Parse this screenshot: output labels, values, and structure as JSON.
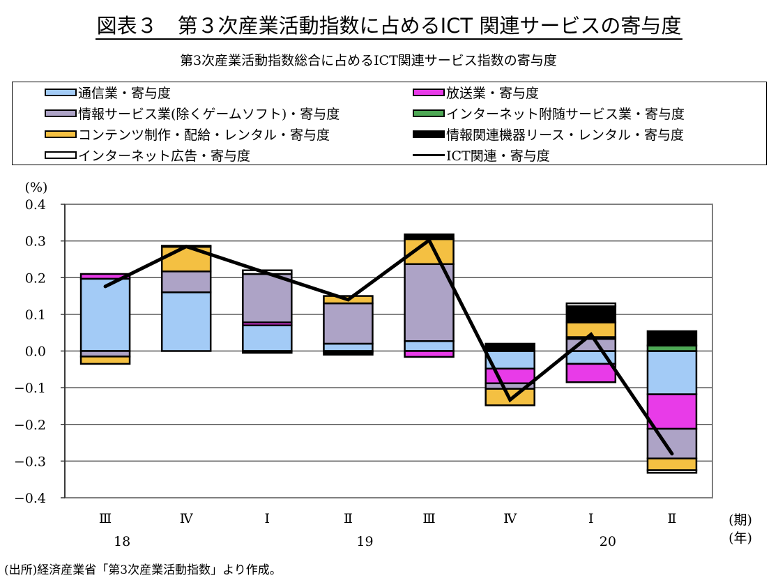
{
  "header": {
    "title": "図表３　第３次産業活動指数に占めるICT 関連サービスの寄与度",
    "subtitle": "第3次産業活動指数総合に占めるICT関連サービス指数の寄与度"
  },
  "legend": [
    {
      "label": "通信業・寄与度",
      "color": "#a3cbf6",
      "kind": "bar"
    },
    {
      "label": "放送業・寄与度",
      "color": "#e83be8",
      "kind": "bar"
    },
    {
      "label": "情報サービス業(除くゲームソフト)・寄与度",
      "color": "#ada3c6",
      "kind": "bar"
    },
    {
      "label": "インターネット附随サービス業・寄与度",
      "color": "#4ea855",
      "kind": "bar"
    },
    {
      "label": "コンテンツ制作・配給・レンタル・寄与度",
      "color": "#f4c042",
      "kind": "bar"
    },
    {
      "label": "情報関連機器リース・レンタル・寄与度",
      "color": "#000000",
      "kind": "bar"
    },
    {
      "label": "インターネット広告・寄与度",
      "color": "#ffffff",
      "kind": "bar"
    },
    {
      "label": "ICT関連・寄与度",
      "color": "#000000",
      "kind": "line"
    }
  ],
  "footer": "(出所)経済産業省「第3次産業活動指数」より作成。",
  "chart_data": {
    "type": "bar",
    "stacked": true,
    "title": "第3次産業活動指数総合に占めるICT関連サービス指数の寄与度",
    "ylabel": "(%)",
    "xlabel_period": "(期)",
    "xlabel_year": "(年)",
    "ylim": [
      -0.4,
      0.4
    ],
    "yticks": [
      0.4,
      0.3,
      0.2,
      0.1,
      0.0,
      -0.1,
      -0.2,
      -0.3,
      -0.4
    ],
    "ytick_labels": [
      "0.4",
      "0.3",
      "0.2",
      "0.1",
      "0.0",
      "−0.1",
      "−0.2",
      "−0.3",
      "−0.4"
    ],
    "categories": [
      "Ⅲ",
      "Ⅳ",
      "Ⅰ",
      "Ⅱ",
      "Ⅲ",
      "Ⅳ",
      "Ⅰ",
      "Ⅱ"
    ],
    "years": [
      {
        "label": "18",
        "at": 0.5
      },
      {
        "label": "19",
        "at": 3.5
      },
      {
        "label": "20",
        "at": 6.5
      }
    ],
    "grid": true,
    "series": [
      {
        "name": "通信業・寄与度",
        "color": "#a3cbf6",
        "values": [
          0.197,
          0.16,
          0.07,
          0.02,
          0.027,
          -0.048,
          -0.035,
          -0.118
        ]
      },
      {
        "name": "放送業・寄与度",
        "color": "#e83be8",
        "values": [
          0.013,
          0.0,
          0.008,
          0.0,
          -0.016,
          -0.04,
          -0.05,
          -0.094
        ]
      },
      {
        "name": "情報サービス業(除くゲームソフト)・寄与度",
        "color": "#ada3c6",
        "values": [
          -0.015,
          0.057,
          0.132,
          0.11,
          0.21,
          -0.015,
          0.033,
          -0.081
        ]
      },
      {
        "name": "インターネット附随サービス業・寄与度",
        "color": "#4ea855",
        "values": [
          0.0,
          0.0,
          0.0,
          -0.004,
          0.0,
          0.0,
          0.005,
          0.015
        ]
      },
      {
        "name": "コンテンツ制作・配給・レンタル・寄与度",
        "color": "#f4c042",
        "values": [
          -0.02,
          0.067,
          0.0,
          0.02,
          0.068,
          -0.045,
          0.04,
          -0.032
        ]
      },
      {
        "name": "情報関連機器リース・レンタル・寄与度",
        "color": "#000000",
        "values": [
          0.0,
          0.003,
          -0.005,
          -0.006,
          0.013,
          0.02,
          0.044,
          0.039
        ]
      },
      {
        "name": "インターネット広告・寄与度",
        "color": "#ffffff",
        "values": [
          0.0,
          0.0,
          0.01,
          0.0,
          0.0,
          0.0,
          0.008,
          -0.007
        ]
      }
    ],
    "line": {
      "name": "ICT関連・寄与度",
      "color": "#000000",
      "values": [
        0.176,
        0.285,
        0.212,
        0.14,
        0.302,
        -0.133,
        0.045,
        -0.28
      ]
    }
  }
}
